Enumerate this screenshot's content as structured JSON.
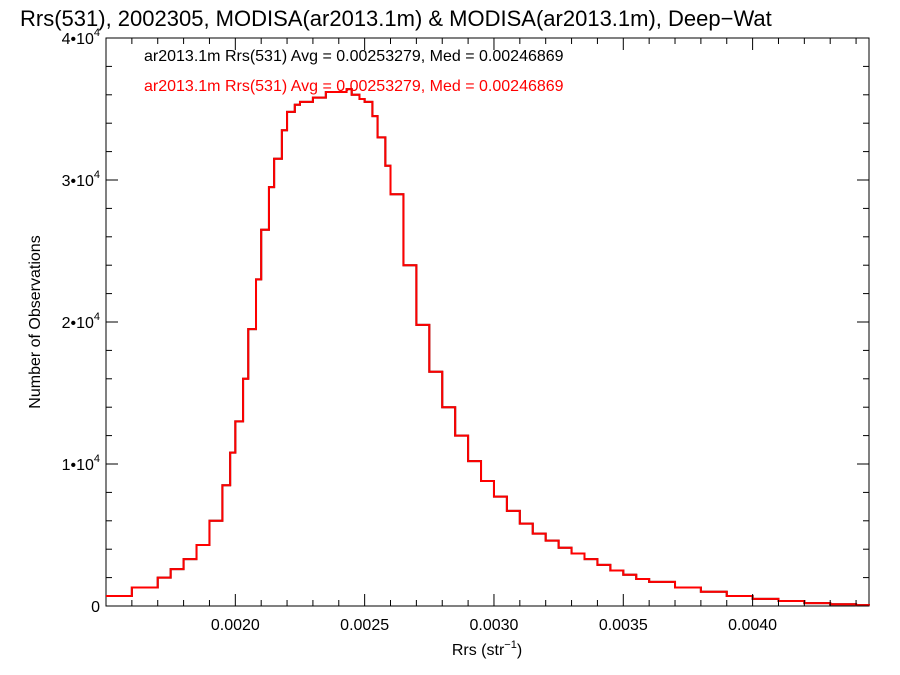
{
  "chart_data": {
    "type": "line",
    "title": "Rrs(531), 2002305, MODISA(ar2013.1m) & MODISA(ar2013.1m), Deep−Wat",
    "xlabel_main": "Rrs (str",
    "xlabel_sup": "−1",
    "xlabel_close": ")",
    "ylabel": "Number of Observations",
    "xlim": [
      0.0015,
      0.00445
    ],
    "ylim": [
      0,
      40000
    ],
    "grid": false,
    "x_ticks": [
      {
        "value": 0.002,
        "label": "0.0020"
      },
      {
        "value": 0.0025,
        "label": "0.0025"
      },
      {
        "value": 0.003,
        "label": "0.0030"
      },
      {
        "value": 0.0035,
        "label": "0.0035"
      },
      {
        "value": 0.004,
        "label": "0.0040"
      }
    ],
    "y_ticks": [
      {
        "value": 0,
        "mant": "0",
        "exp": ""
      },
      {
        "value": 10000,
        "mant": "1•10",
        "exp": "4"
      },
      {
        "value": 20000,
        "mant": "2•10",
        "exp": "4"
      },
      {
        "value": 30000,
        "mant": "3•10",
        "exp": "4"
      },
      {
        "value": 40000,
        "mant": "4•10",
        "exp": "4"
      }
    ],
    "annotations": [
      {
        "text": "ar2013.1m Rrs(531) Avg = 0.00253279, Med = 0.00246869",
        "color": "#000000"
      },
      {
        "text": "ar2013.1m Rrs(531) Avg = 0.00253279, Med = 0.00246869",
        "color": "#ff0000"
      }
    ],
    "series": [
      {
        "color": "#000000",
        "x": [
          0.0015,
          0.0016,
          0.0017,
          0.00175,
          0.0018,
          0.00185,
          0.0019,
          0.00195,
          0.00198,
          0.002,
          0.00203,
          0.00205,
          0.00208,
          0.0021,
          0.00213,
          0.00215,
          0.00218,
          0.0022,
          0.00223,
          0.00225,
          0.0023,
          0.00235,
          0.0024,
          0.00243,
          0.00245,
          0.00248,
          0.0025,
          0.00253,
          0.00255,
          0.00258,
          0.0026,
          0.00265,
          0.0027,
          0.00275,
          0.0028,
          0.00285,
          0.0029,
          0.00295,
          0.003,
          0.00305,
          0.0031,
          0.00315,
          0.0032,
          0.00325,
          0.0033,
          0.00335,
          0.0034,
          0.00345,
          0.0035,
          0.00355,
          0.0036,
          0.0037,
          0.0038,
          0.0039,
          0.004,
          0.0041,
          0.0042,
          0.0043,
          0.0044,
          0.00445
        ],
        "y": [
          700,
          1300,
          2000,
          2600,
          3300,
          4300,
          6000,
          8500,
          10800,
          13000,
          16000,
          19500,
          23000,
          26500,
          29500,
          31500,
          33500,
          34800,
          35300,
          35500,
          35800,
          36200,
          36200,
          36400,
          36000,
          35700,
          35500,
          34500,
          33000,
          31000,
          29000,
          24000,
          19800,
          16500,
          14000,
          12000,
          10200,
          8800,
          7700,
          6700,
          5800,
          5100,
          4600,
          4100,
          3700,
          3300,
          2900,
          2500,
          2200,
          1900,
          1700,
          1300,
          1000,
          700,
          500,
          350,
          200,
          120,
          60,
          40
        ]
      },
      {
        "color": "#ff0000",
        "x": [
          0.0015,
          0.0016,
          0.0017,
          0.00175,
          0.0018,
          0.00185,
          0.0019,
          0.00195,
          0.00198,
          0.002,
          0.00203,
          0.00205,
          0.00208,
          0.0021,
          0.00213,
          0.00215,
          0.00218,
          0.0022,
          0.00223,
          0.00225,
          0.0023,
          0.00235,
          0.0024,
          0.00243,
          0.00245,
          0.00248,
          0.0025,
          0.00253,
          0.00255,
          0.00258,
          0.0026,
          0.00265,
          0.0027,
          0.00275,
          0.0028,
          0.00285,
          0.0029,
          0.00295,
          0.003,
          0.00305,
          0.0031,
          0.00315,
          0.0032,
          0.00325,
          0.0033,
          0.00335,
          0.0034,
          0.00345,
          0.0035,
          0.00355,
          0.0036,
          0.0037,
          0.0038,
          0.0039,
          0.004,
          0.0041,
          0.0042,
          0.0043,
          0.0044,
          0.00445
        ],
        "y": [
          700,
          1300,
          2000,
          2600,
          3300,
          4300,
          6000,
          8500,
          10800,
          13000,
          16000,
          19500,
          23000,
          26500,
          29500,
          31500,
          33500,
          34800,
          35300,
          35500,
          35800,
          36200,
          36200,
          36400,
          36000,
          35700,
          35500,
          34500,
          33000,
          31000,
          29000,
          24000,
          19800,
          16500,
          14000,
          12000,
          10200,
          8800,
          7700,
          6700,
          5800,
          5100,
          4600,
          4100,
          3700,
          3300,
          2900,
          2500,
          2200,
          1900,
          1700,
          1300,
          1000,
          700,
          500,
          350,
          200,
          120,
          60,
          40
        ]
      }
    ]
  }
}
